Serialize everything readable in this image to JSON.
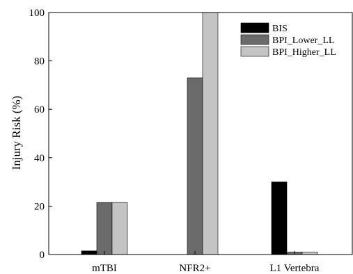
{
  "chart_data": {
    "type": "bar",
    "categories": [
      "mTBI",
      "NFR2+",
      "L1 Vertebra"
    ],
    "series": [
      {
        "name": "BIS",
        "values": [
          1.5,
          0,
          30
        ],
        "color": "#000000"
      },
      {
        "name": "BPI_Lower_LL",
        "values": [
          21.5,
          73,
          1
        ],
        "color": "#6b6b6b"
      },
      {
        "name": "BPI_Higher_LL",
        "values": [
          21.5,
          100,
          1
        ],
        "color": "#c4c4c4"
      }
    ],
    "title": "",
    "xlabel": "",
    "ylabel": "Injury Risk (%)",
    "ylim": [
      0,
      100
    ],
    "yticks": [
      0,
      20,
      40,
      60,
      80,
      100
    ],
    "grid": false,
    "legend_position": "top-right"
  }
}
